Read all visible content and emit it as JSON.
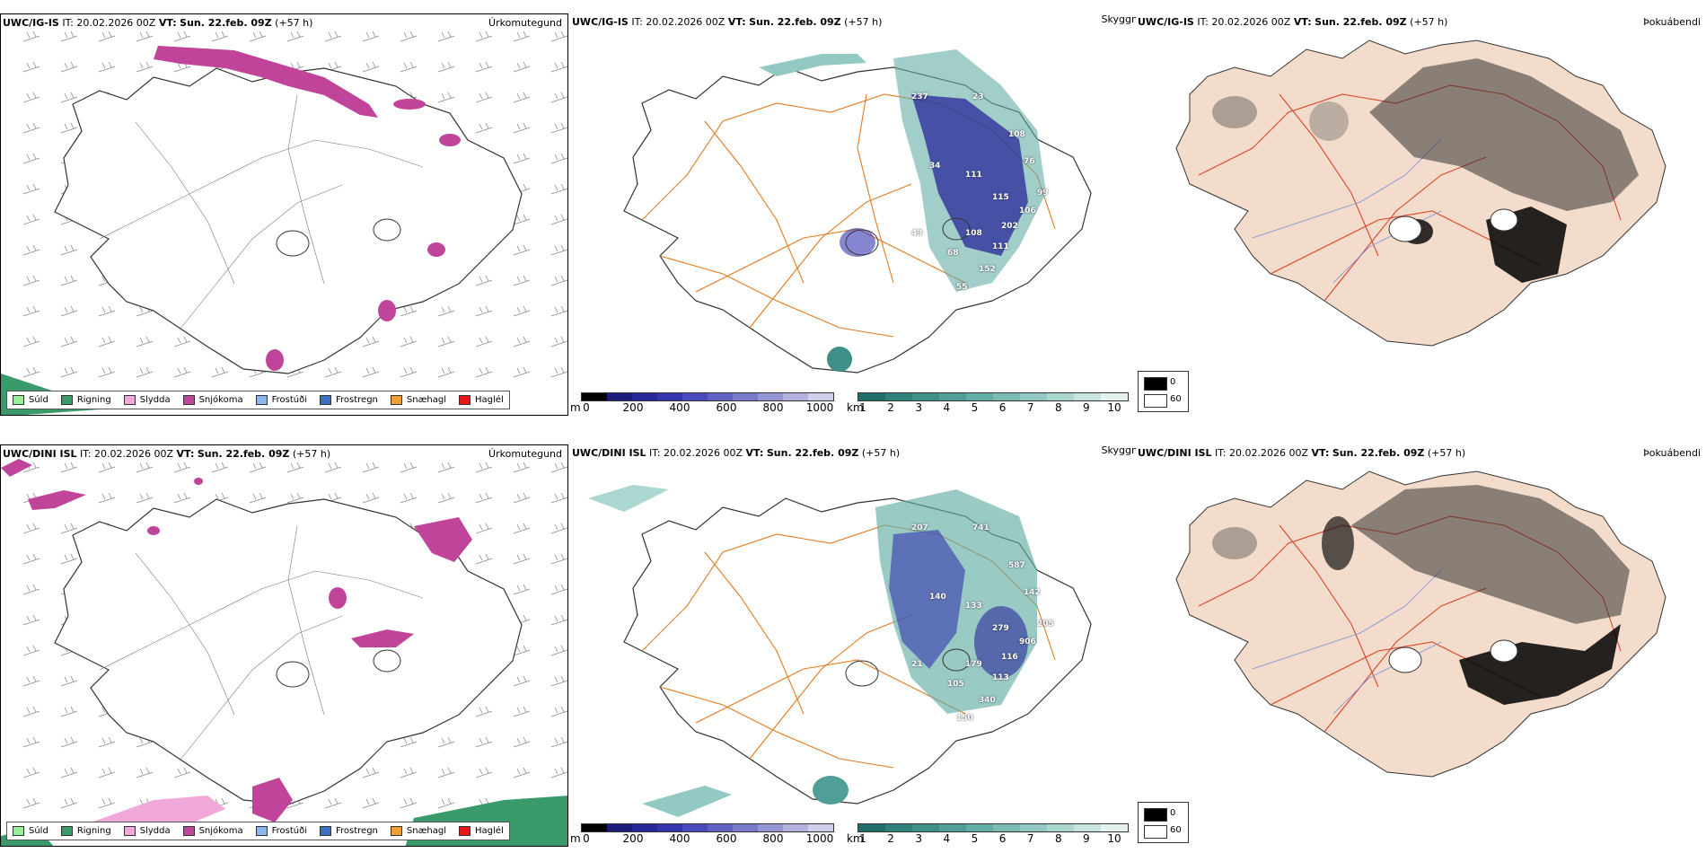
{
  "rows": [
    {
      "id": "top",
      "precip": {
        "model": "UWC/IG-IS",
        "it_label": "IT:",
        "it_value": "20.02.2026 00Z",
        "vt_label": "VT:",
        "vt_value": "Sun. 22.feb. 09Z",
        "lead": "(+57 h)",
        "title": "Úrkomutegund"
      },
      "cloud": {
        "model": "UWC/IG-IS",
        "it_label": "IT:",
        "it_value": "20.02.2026 00Z",
        "vt_label": "VT:",
        "vt_value": "Sun. 22.feb. 09Z",
        "lead": "(+57 h)",
        "title": "Skyggni",
        "values": [
          "237",
          "23",
          "108",
          "34",
          "111",
          "115",
          "99",
          "106",
          "202",
          "108",
          "111",
          "152",
          "68",
          "55",
          "43",
          "76"
        ]
      },
      "fog": {
        "model": "UWC/IG-IS",
        "it_label": "IT:",
        "it_value": "20.02.2026 00Z",
        "vt_label": "VT:",
        "vt_value": "Sun. 22.feb. 09Z",
        "lead": "(+57 h)",
        "title": "Þokuábendi"
      }
    },
    {
      "id": "bottom",
      "precip": {
        "model": "UWC/DINI ISL",
        "it_label": "IT:",
        "it_value": "20.02.2026 00Z",
        "vt_label": "VT:",
        "vt_value": "Sun. 22.feb. 09Z",
        "lead": "(+57 h)",
        "title": "Úrkomutegund"
      },
      "cloud": {
        "model": "UWC/DINI ISL",
        "it_label": "IT:",
        "it_value": "20.02.2026 00Z",
        "vt_label": "VT:",
        "vt_value": "Sun. 22.feb. 09Z",
        "lead": "(+57 h)",
        "title": "Skyggni",
        "values": [
          "207",
          "741",
          "587",
          "140",
          "133",
          "279",
          "205",
          "906",
          "116",
          "179",
          "113",
          "340",
          "105",
          "150",
          "21",
          "142"
        ]
      },
      "fog": {
        "model": "UWC/DINI ISL",
        "it_label": "IT:",
        "it_value": "20.02.2026 00Z",
        "vt_label": "VT:",
        "vt_value": "Sun. 22.feb. 09Z",
        "lead": "(+57 h)",
        "title": "Þokuábendi"
      }
    }
  ],
  "precip_legend": [
    {
      "label": "Súld",
      "color": "#99ee99"
    },
    {
      "label": "Rigning",
      "color": "#3a9a6a"
    },
    {
      "label": "Slydda",
      "color": "#f0a8d8"
    },
    {
      "label": "Snjókoma",
      "color": "#c0449a"
    },
    {
      "label": "Frostúði",
      "color": "#88b8ee"
    },
    {
      "label": "Frostregn",
      "color": "#3f6fc0"
    },
    {
      "label": "Snæhagl",
      "color": "#f0a030"
    },
    {
      "label": "Haglél",
      "color": "#e81818"
    }
  ],
  "ceiling_scale": {
    "unit": "m",
    "ticks": [
      "0",
      "200",
      "400",
      "600",
      "800",
      "1000"
    ],
    "colors": [
      "#000000",
      "#1c1c7a",
      "#27279a",
      "#3535b0",
      "#4a4abc",
      "#6262c4",
      "#7a7acc",
      "#9696d4",
      "#b2b2de",
      "#d0d0ea"
    ]
  },
  "visibility_scale": {
    "unit": "km",
    "ticks": [
      "1",
      "2",
      "3",
      "4",
      "5",
      "6",
      "7",
      "8",
      "9",
      "10"
    ],
    "colors": [
      "#1f6e6a",
      "#2f7f7a",
      "#3f8f89",
      "#509e97",
      "#64ada5",
      "#7abcb4",
      "#92c9c2",
      "#acd6d0",
      "#c8e4df",
      "#e6f2ef"
    ]
  },
  "fog_key": [
    {
      "value": "0",
      "color": "#000000"
    },
    {
      "value": "60",
      "color": "#ffffff"
    }
  ],
  "colors": {
    "coast": "#333333",
    "roads": "#e07a20",
    "fog_land": "#f3dccb",
    "fog_roads": "#d9442a",
    "rivers": "#7c8fe0"
  }
}
